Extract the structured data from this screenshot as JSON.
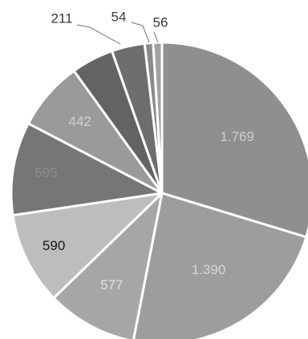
{
  "chart_data": {
    "type": "pie",
    "title": "",
    "start": "12 o'clock",
    "direction": "clockwise",
    "slices": [
      {
        "label": "1.769",
        "value": 1769,
        "color": "#8f8f8f",
        "label_color": "#cfcfcf"
      },
      {
        "label": "1.390",
        "value": 1390,
        "color": "#9d9d9d",
        "label_color": "#d6d6d6"
      },
      {
        "label": "577",
        "value": 577,
        "color": "#a6a6a6",
        "label_color": "#e3e3e3"
      },
      {
        "label": "590",
        "value": 590,
        "color": "#bdbdbd",
        "label_color": "#1a1a1a"
      },
      {
        "label": "595",
        "value": 595,
        "color": "#767676",
        "label_color": "#8d8d8d"
      },
      {
        "label": "442",
        "value": 442,
        "color": "#9a9a9a",
        "label_color": "#cfcfcf"
      },
      {
        "label": "",
        "value": 270,
        "color": "#636363",
        "label_color": "#ffffff"
      },
      {
        "label": "211",
        "value": 211,
        "color": "#6e6e6e",
        "label_color": "#3a3a3a"
      },
      {
        "label": "54",
        "value": 54,
        "color": "#8a8a8a",
        "label_color": "#3a3a3a"
      },
      {
        "label": "56",
        "value": 56,
        "color": "#a2a2a2",
        "label_color": "#3a3a3a"
      }
    ]
  }
}
